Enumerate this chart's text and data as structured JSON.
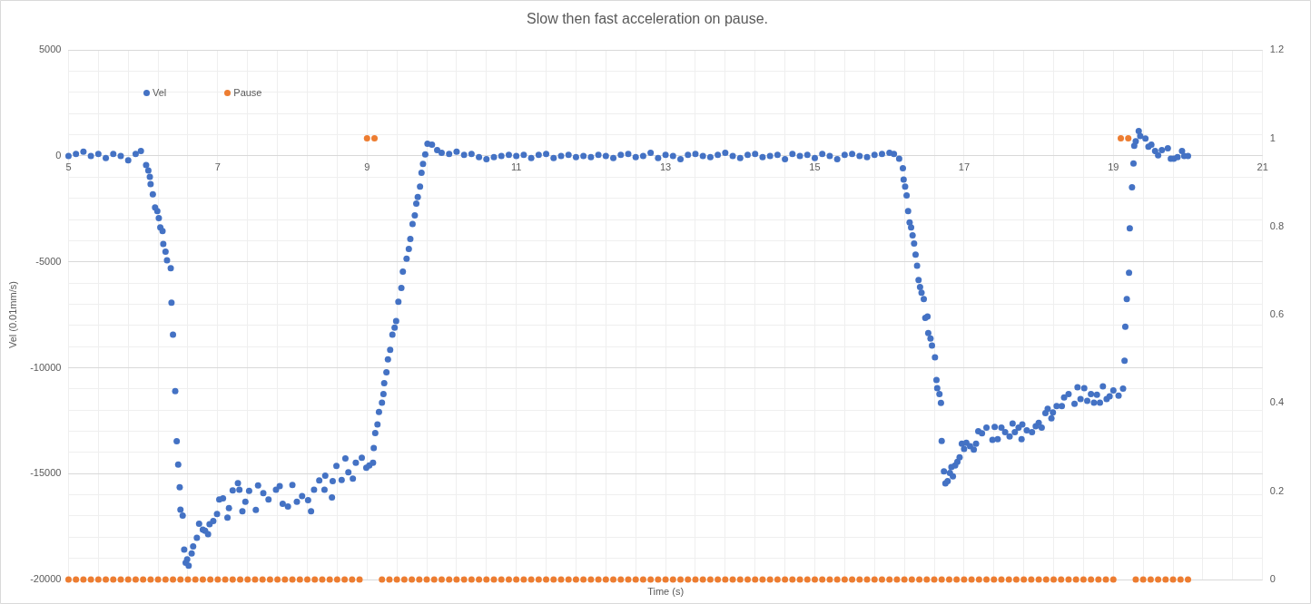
{
  "chart_data": {
    "type": "scatter",
    "title": "Slow then fast acceleration on pause.",
    "xlabel": "Time (s)",
    "ylabel": "Vel (0.01mm/s)",
    "grid": true,
    "legend": "top left",
    "marker": "circle",
    "xlim": [
      5,
      21
    ],
    "xticks": [
      5,
      {
        "value": 5.4,
        "label": null
      },
      {
        "value": 5.8,
        "label": null
      },
      {
        "value": 6.2,
        "label": null
      },
      {
        "value": 6.6,
        "label": null
      },
      7,
      {
        "value": 7.4,
        "label": null
      },
      {
        "value": 7.8,
        "label": null
      },
      {
        "value": 8.2,
        "label": null
      },
      {
        "value": 8.6,
        "label": null
      },
      9,
      {
        "value": 9.4,
        "label": null
      },
      {
        "value": 9.8,
        "label": null
      },
      {
        "value": 10.2,
        "label": null
      },
      {
        "value": 10.6,
        "label": null
      },
      11,
      {
        "value": 11.4,
        "label": null
      },
      {
        "value": 11.8,
        "label": null
      },
      {
        "value": 12.2,
        "label": null
      },
      {
        "value": 12.6,
        "label": null
      },
      13,
      {
        "value": 13.4,
        "label": null
      },
      {
        "value": 13.8,
        "label": null
      },
      {
        "value": 14.2,
        "label": null
      },
      {
        "value": 14.6,
        "label": null
      },
      15,
      {
        "value": 15.4,
        "label": null
      },
      {
        "value": 15.8,
        "label": null
      },
      {
        "value": 16.2,
        "label": null
      },
      {
        "value": 16.6,
        "label": null
      },
      17,
      {
        "value": 17.4,
        "label": null
      },
      {
        "value": 17.8,
        "label": null
      },
      {
        "value": 18.2,
        "label": null
      },
      {
        "value": 18.6,
        "label": null
      },
      19,
      {
        "value": 19.4,
        "label": null
      },
      {
        "value": 19.8,
        "label": null
      },
      {
        "value": 20.2,
        "label": null
      },
      {
        "value": 20.6,
        "label": null
      },
      21
    ],
    "ylim": [
      -20000,
      5000
    ],
    "yticks": [
      -20000,
      {
        "value": -19000,
        "label": null
      },
      {
        "value": -18000,
        "label": null
      },
      {
        "value": -17000,
        "label": null
      },
      {
        "value": -16000,
        "label": null
      },
      -15000,
      {
        "value": -14000,
        "label": null
      },
      {
        "value": -13000,
        "label": null
      },
      {
        "value": -12000,
        "label": null
      },
      {
        "value": -11000,
        "label": null
      },
      -10000,
      {
        "value": -9000,
        "label": null
      },
      {
        "value": -8000,
        "label": null
      },
      {
        "value": -7000,
        "label": null
      },
      {
        "value": -6000,
        "label": null
      },
      -5000,
      {
        "value": -4000,
        "label": null
      },
      {
        "value": -3000,
        "label": null
      },
      {
        "value": -2000,
        "label": null
      },
      {
        "value": -1000,
        "label": null
      },
      0,
      {
        "value": 1000,
        "label": null
      },
      {
        "value": 2000,
        "label": null
      },
      {
        "value": 3000,
        "label": null
      },
      {
        "value": 4000,
        "label": null
      },
      5000
    ],
    "y2lim": [
      0,
      1.2
    ],
    "y2ticks": [
      0,
      0.2,
      0.4,
      0.6,
      0.8,
      1,
      1.2
    ],
    "series": [
      {
        "name": "Vel",
        "color": "#4472c4",
        "x": [
          5.0,
          5.1,
          5.2,
          5.3,
          5.4,
          5.5,
          5.6,
          5.7,
          5.8,
          5.9,
          5.97,
          6.04,
          6.07,
          6.09,
          6.1,
          6.13,
          6.16,
          6.19,
          6.21,
          6.23,
          6.26,
          6.27,
          6.3,
          6.32,
          6.37,
          6.38,
          6.4,
          6.43,
          6.45,
          6.47,
          6.49,
          6.5,
          6.53,
          6.55,
          6.57,
          6.59,
          6.61,
          6.65,
          6.67,
          6.72,
          6.75,
          6.8,
          6.83,
          6.87,
          6.89,
          6.94,
          6.99,
          7.02,
          7.07,
          7.13,
          7.15,
          7.2,
          7.27,
          7.29,
          7.33,
          7.37,
          7.42,
          7.51,
          7.54,
          7.61,
          7.68,
          7.78,
          7.83,
          7.87,
          7.94,
          8.0,
          8.06,
          8.13,
          8.21,
          8.25,
          8.29,
          8.36,
          8.43,
          8.44,
          8.53,
          8.54,
          8.59,
          8.66,
          8.71,
          8.75,
          8.81,
          8.85,
          8.93,
          8.99,
          9.03,
          9.08,
          9.09,
          9.11,
          9.14,
          9.16,
          9.2,
          9.22,
          9.23,
          9.26,
          9.28,
          9.31,
          9.34,
          9.37,
          9.39,
          9.42,
          9.46,
          9.48,
          9.53,
          9.56,
          9.58,
          9.61,
          9.64,
          9.66,
          9.68,
          9.71,
          9.73,
          9.75,
          9.78,
          9.81,
          9.87,
          9.94,
          10.0,
          10.1,
          10.2,
          10.3,
          10.4,
          10.5,
          10.6,
          10.7,
          10.8,
          10.9,
          11.0,
          11.1,
          11.2,
          11.3,
          11.4,
          11.5,
          11.6,
          11.7,
          11.8,
          11.9,
          12.0,
          12.1,
          12.2,
          12.3,
          12.4,
          12.5,
          12.6,
          12.7,
          12.8,
          12.9,
          13.0,
          13.1,
          13.2,
          13.3,
          13.4,
          13.5,
          13.6,
          13.7,
          13.8,
          13.9,
          14.0,
          14.1,
          14.2,
          14.3,
          14.4,
          14.5,
          14.6,
          14.7,
          14.8,
          14.9,
          15.0,
          15.1,
          15.2,
          15.3,
          15.4,
          15.5,
          15.6,
          15.7,
          15.8,
          15.9,
          16.0,
          16.06,
          16.13,
          16.18,
          16.19,
          16.21,
          16.23,
          16.25,
          16.27,
          16.29,
          16.31,
          16.33,
          16.35,
          16.37,
          16.39,
          16.41,
          16.43,
          16.46,
          16.48,
          16.51,
          16.52,
          16.55,
          16.57,
          16.61,
          16.63,
          16.64,
          16.67,
          16.69,
          16.7,
          16.73,
          16.75,
          16.78,
          16.81,
          16.83,
          16.85,
          16.88,
          16.91,
          16.94,
          16.97,
          17.0,
          17.03,
          17.08,
          17.13,
          17.16,
          17.19,
          17.24,
          17.3,
          17.38,
          17.41,
          17.45,
          17.5,
          17.55,
          17.61,
          17.65,
          17.68,
          17.73,
          17.77,
          17.78,
          17.84,
          17.91,
          17.96,
          18.0,
          18.04,
          18.09,
          18.12,
          18.17,
          18.19,
          18.24,
          18.31,
          18.34,
          18.4,
          18.48,
          18.52,
          18.56,
          18.61,
          18.65,
          18.7,
          18.74,
          18.78,
          18.82,
          18.86,
          18.91,
          18.95,
          19.0,
          19.07,
          19.13,
          19.15,
          19.16,
          19.18,
          19.21,
          19.22,
          19.25,
          19.27,
          19.28,
          19.3,
          19.34,
          19.36,
          19.43,
          19.47,
          19.51,
          19.56,
          19.6,
          19.65,
          19.73,
          19.77,
          19.81,
          19.86,
          19.92,
          19.95,
          20.0
        ],
        "values": [
          0,
          100,
          200,
          0,
          100,
          -100,
          100,
          0,
          -200,
          100,
          230,
          -430,
          -690,
          -990,
          -1330,
          -1810,
          -2430,
          -2600,
          -2940,
          -3370,
          -3540,
          -4160,
          -4520,
          -4930,
          -5300,
          -6930,
          -8440,
          -11100,
          -13470,
          -14570,
          -15640,
          -16700,
          -16980,
          -18590,
          -19210,
          -19050,
          -19350,
          -18770,
          -18440,
          -18030,
          -17370,
          -17650,
          -17700,
          -17860,
          -17390,
          -17240,
          -16910,
          -16220,
          -16170,
          -17080,
          -16630,
          -15790,
          -15450,
          -15760,
          -16780,
          -16330,
          -15810,
          -16710,
          -15560,
          -15920,
          -16220,
          -15760,
          -15590,
          -16420,
          -16550,
          -15540,
          -16330,
          -16060,
          -16250,
          -16780,
          -15760,
          -15320,
          -15760,
          -15100,
          -16120,
          -15350,
          -14640,
          -15300,
          -14280,
          -14940,
          -15240,
          -14490,
          -14250,
          -14720,
          -14610,
          -14490,
          -13790,
          -13080,
          -12680,
          -12090,
          -11650,
          -11240,
          -10730,
          -10220,
          -9610,
          -9160,
          -8440,
          -8110,
          -7800,
          -6890,
          -6230,
          -5460,
          -4850,
          -4390,
          -3920,
          -3210,
          -2810,
          -2250,
          -1940,
          -1450,
          -790,
          -380,
          70,
          580,
          530,
          280,
          150,
          100,
          200,
          50,
          100,
          -50,
          -150,
          -50,
          0,
          50,
          0,
          50,
          -100,
          50,
          100,
          -100,
          0,
          50,
          -50,
          0,
          -50,
          50,
          0,
          -100,
          50,
          100,
          -50,
          0,
          150,
          -100,
          50,
          0,
          -150,
          50,
          100,
          0,
          -50,
          50,
          150,
          0,
          -100,
          50,
          100,
          -50,
          0,
          50,
          -150,
          100,
          0,
          50,
          -100,
          100,
          0,
          -150,
          50,
          100,
          0,
          -50,
          50,
          100,
          150,
          100,
          -130,
          -580,
          -1120,
          -1450,
          -1860,
          -2600,
          -3140,
          -3370,
          -3750,
          -4130,
          -4660,
          -5180,
          -5860,
          -6190,
          -6460,
          -6760,
          -7650,
          -7580,
          -8360,
          -8620,
          -8950,
          -9510,
          -10580,
          -10960,
          -11240,
          -11660,
          -13460,
          -14890,
          -15460,
          -15350,
          -14970,
          -14690,
          -15130,
          -14610,
          -14440,
          -14230,
          -13590,
          -13830,
          -13540,
          -13700,
          -13870,
          -13590,
          -13000,
          -13100,
          -12830,
          -13410,
          -12800,
          -13370,
          -12830,
          -13040,
          -13240,
          -12630,
          -13040,
          -12830,
          -13370,
          -12680,
          -12960,
          -13040,
          -12760,
          -12600,
          -12830,
          -12140,
          -11940,
          -12390,
          -12110,
          -11810,
          -11810,
          -11400,
          -11240,
          -11700,
          -10920,
          -11480,
          -10960,
          -11560,
          -11240,
          -11650,
          -11280,
          -11650,
          -10880,
          -11480,
          -11350,
          -11070,
          -11320,
          -10990,
          -9670,
          -8060,
          -6760,
          -5510,
          -3420,
          -1480,
          -360,
          480,
          690,
          1180,
          940,
          820,
          440,
          530,
          230,
          30,
          280,
          360,
          -130,
          -130,
          -50,
          230,
          0,
          0
        ]
      },
      {
        "name": "Pause",
        "color": "#ed7d31",
        "axis": "y2",
        "x": [
          5.0,
          5.1,
          5.2,
          5.3,
          5.4,
          5.5,
          5.6,
          5.7,
          5.8,
          5.9,
          6.0,
          6.1,
          6.2,
          6.3,
          6.4,
          6.5,
          6.6,
          6.7,
          6.8,
          6.9,
          7.0,
          7.1,
          7.2,
          7.3,
          7.4,
          7.5,
          7.6,
          7.7,
          7.8,
          7.9,
          8.0,
          8.1,
          8.2,
          8.3,
          8.4,
          8.5,
          8.6,
          8.7,
          8.8,
          8.9,
          9.0,
          9.1,
          9.2,
          9.3,
          9.4,
          9.5,
          9.6,
          9.7,
          9.8,
          9.9,
          10.0,
          10.1,
          10.2,
          10.3,
          10.4,
          10.5,
          10.6,
          10.7,
          10.8,
          10.9,
          11.0,
          11.1,
          11.2,
          11.3,
          11.4,
          11.5,
          11.6,
          11.7,
          11.8,
          11.9,
          12.0,
          12.1,
          12.2,
          12.3,
          12.4,
          12.5,
          12.6,
          12.7,
          12.8,
          12.9,
          13.0,
          13.1,
          13.2,
          13.3,
          13.4,
          13.5,
          13.6,
          13.7,
          13.8,
          13.9,
          14.0,
          14.1,
          14.2,
          14.3,
          14.4,
          14.5,
          14.6,
          14.7,
          14.8,
          14.9,
          15.0,
          15.1,
          15.2,
          15.3,
          15.4,
          15.5,
          15.6,
          15.7,
          15.8,
          15.9,
          16.0,
          16.1,
          16.2,
          16.3,
          16.4,
          16.5,
          16.6,
          16.7,
          16.8,
          16.9,
          17.0,
          17.1,
          17.2,
          17.3,
          17.4,
          17.5,
          17.6,
          17.7,
          17.8,
          17.9,
          18.0,
          18.1,
          18.2,
          18.3,
          18.4,
          18.5,
          18.6,
          18.7,
          18.8,
          18.9,
          19.0,
          19.1,
          19.2,
          19.3,
          19.4,
          19.5,
          19.6,
          19.7,
          19.8,
          19.9,
          20.0
        ],
        "values": [
          0,
          0,
          0,
          0,
          0,
          0,
          0,
          0,
          0,
          0,
          0,
          0,
          0,
          0,
          0,
          0,
          0,
          0,
          0,
          0,
          0,
          0,
          0,
          0,
          0,
          0,
          0,
          0,
          0,
          0,
          0,
          0,
          0,
          0,
          0,
          0,
          0,
          0,
          0,
          0,
          1,
          1,
          0,
          0,
          0,
          0,
          0,
          0,
          0,
          0,
          0,
          0,
          0,
          0,
          0,
          0,
          0,
          0,
          0,
          0,
          0,
          0,
          0,
          0,
          0,
          0,
          0,
          0,
          0,
          0,
          0,
          0,
          0,
          0,
          0,
          0,
          0,
          0,
          0,
          0,
          0,
          0,
          0,
          0,
          0,
          0,
          0,
          0,
          0,
          0,
          0,
          0,
          0,
          0,
          0,
          0,
          0,
          0,
          0,
          0,
          0,
          0,
          0,
          0,
          0,
          0,
          0,
          0,
          0,
          0,
          0,
          0,
          0,
          0,
          0,
          0,
          0,
          0,
          0,
          0,
          0,
          0,
          0,
          0,
          0,
          0,
          0,
          0,
          0,
          0,
          0,
          0,
          0,
          0,
          0,
          0,
          0,
          0,
          0,
          0,
          0,
          1,
          1,
          0,
          0,
          0,
          0,
          0,
          0,
          0,
          0
        ]
      }
    ]
  }
}
